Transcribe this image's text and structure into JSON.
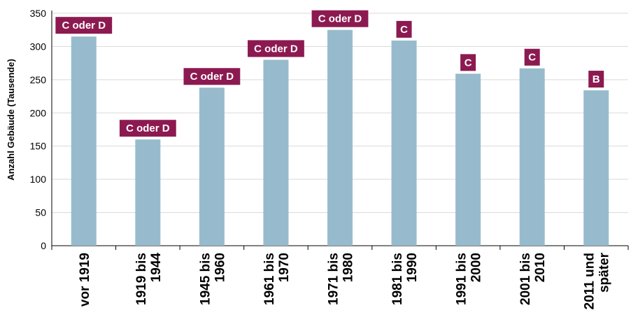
{
  "colors": {
    "bar": "#97bbcd",
    "badge": "#8c1a50",
    "badge_text": "#ffffff",
    "grid": "#d9d9d9",
    "axis": "#000000"
  },
  "chart_data": {
    "type": "bar",
    "title": "",
    "xlabel": "",
    "ylabel": "Anzahl Gebäude (Tausende)",
    "ylim": [
      0,
      350
    ],
    "yticks": [
      0,
      50,
      100,
      150,
      200,
      250,
      300,
      350
    ],
    "grid": true,
    "categories": [
      [
        "vor 1919"
      ],
      [
        "1919 bis",
        "1944"
      ],
      [
        "1945 bis",
        "1960"
      ],
      [
        "1961 bis",
        "1970"
      ],
      [
        "1971 bis",
        "1980"
      ],
      [
        "1981 bis",
        "1990"
      ],
      [
        "1991 bis",
        "2000"
      ],
      [
        "2001 bis",
        "2010"
      ],
      [
        "2011 und",
        "später"
      ]
    ],
    "values": [
      315,
      160,
      238,
      280,
      325,
      309,
      259,
      267,
      234
    ],
    "annotations": [
      "C oder D",
      "C oder D",
      "C oder D",
      "C oder D",
      "C oder D",
      "C",
      "C",
      "C",
      "B"
    ]
  }
}
